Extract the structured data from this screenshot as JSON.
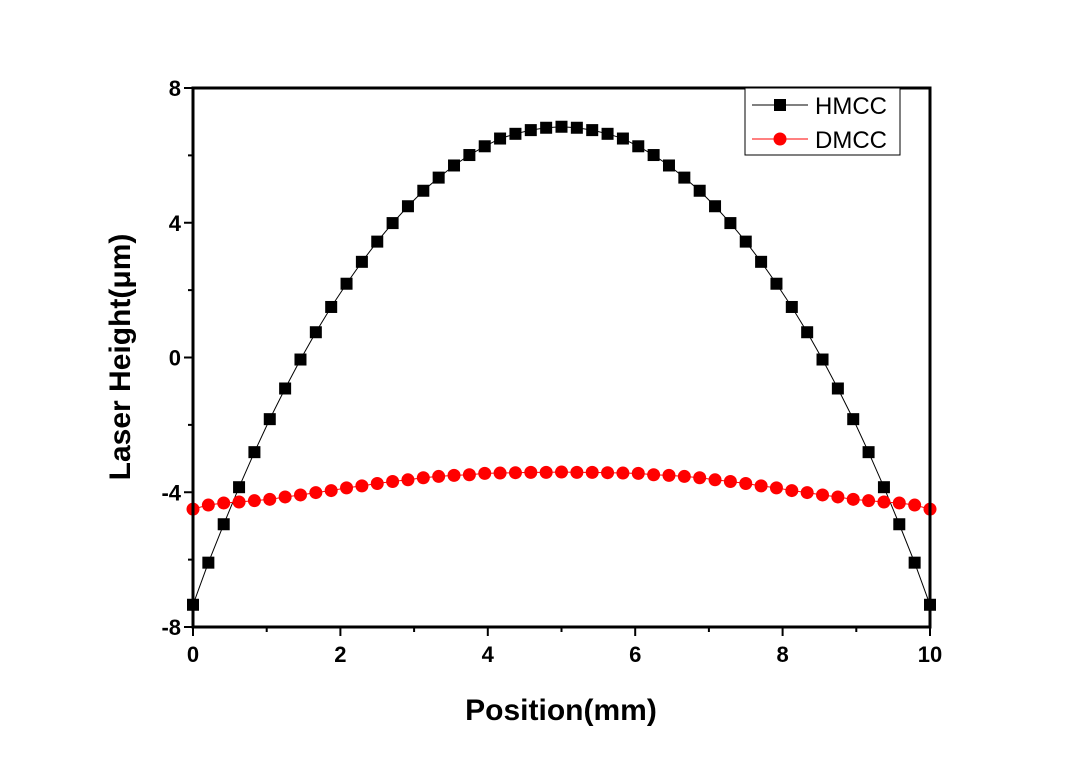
{
  "chart_data": {
    "type": "line",
    "title": "",
    "xlabel": "Position(mm)",
    "ylabel": "Laser Height(μm)",
    "xlim": [
      0,
      10
    ],
    "ylim": [
      -8,
      8
    ],
    "xticks": [
      "0",
      "2",
      "4",
      "6",
      "8",
      "10"
    ],
    "yticks": [
      "8",
      "4",
      "0",
      "-4",
      "-8"
    ],
    "grid": false,
    "legend_position": "top-right",
    "x_step": 0.2083,
    "series": [
      {
        "name": "HMCC",
        "color": "#000000",
        "marker": "square",
        "values": [
          -7.34,
          -6.09,
          -4.95,
          -3.85,
          -2.81,
          -1.83,
          -0.92,
          -0.06,
          0.75,
          1.5,
          2.19,
          2.84,
          3.44,
          3.99,
          4.49,
          4.95,
          5.34,
          5.7,
          6.01,
          6.27,
          6.5,
          6.64,
          6.75,
          6.82,
          6.85,
          6.82,
          6.75,
          6.64,
          6.5,
          6.27,
          6.01,
          5.7,
          5.34,
          4.95,
          4.49,
          3.99,
          3.44,
          2.84,
          2.19,
          1.5,
          0.75,
          -0.06,
          -0.92,
          -1.83,
          -2.81,
          -3.85,
          -4.95,
          -6.09,
          -7.34
        ]
      },
      {
        "name": "DMCC",
        "color": "#ff0000",
        "marker": "circle",
        "values": [
          -4.5,
          -4.38,
          -4.32,
          -4.29,
          -4.25,
          -4.21,
          -4.14,
          -4.08,
          -4.01,
          -3.95,
          -3.87,
          -3.81,
          -3.74,
          -3.68,
          -3.63,
          -3.57,
          -3.53,
          -3.5,
          -3.48,
          -3.44,
          -3.43,
          -3.42,
          -3.41,
          -3.41,
          -3.4,
          -3.41,
          -3.41,
          -3.42,
          -3.43,
          -3.44,
          -3.48,
          -3.5,
          -3.53,
          -3.57,
          -3.63,
          -3.68,
          -3.74,
          -3.81,
          -3.87,
          -3.95,
          -4.01,
          -4.08,
          -4.14,
          -4.21,
          -4.25,
          -4.29,
          -4.32,
          -4.38,
          -4.5
        ]
      }
    ]
  }
}
